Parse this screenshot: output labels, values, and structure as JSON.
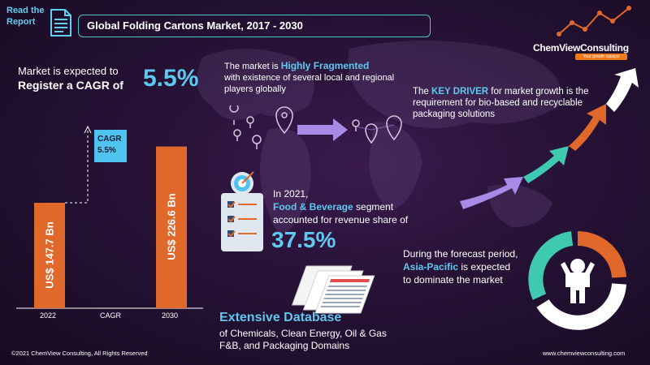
{
  "header": {
    "read_report_line1": "Read the",
    "read_report_line2": "Report",
    "title": "Global Folding Cartons Market, 2017 - 2030"
  },
  "logo": {
    "name": "ChemViewConsulting",
    "tagline": "Your growth catalyst"
  },
  "cagr": {
    "line1": "Market is expected to",
    "line2": "Register a CAGR of",
    "value": "5.5%"
  },
  "chart_data": {
    "type": "bar",
    "title": "",
    "categories": [
      "2022",
      "CAGR",
      "2030"
    ],
    "series": [
      {
        "values": [
          147.7,
          null,
          226.6
        ]
      }
    ],
    "bar_labels": [
      "US$ 147.7 Bn",
      "",
      "US$ 226.6 Bn"
    ],
    "badge": {
      "label": "CAGR",
      "value": "5.5%"
    },
    "xlabel": "",
    "ylabel": "",
    "ylim": [
      0,
      250
    ],
    "grid": false,
    "colors": {
      "bar": "#e0682a",
      "badge": "#4fc3f0"
    }
  },
  "fragmented": {
    "pre": "The market is ",
    "highlight": "Highly Fragmented",
    "rest": "with existence of several local and regional players globally"
  },
  "driver": {
    "pre": "The ",
    "highlight": "KEY DRIVER",
    "rest": " for market growth is the requirement for bio-based and recyclable packaging solutions"
  },
  "food_bev": {
    "line1": "In 2021,",
    "highlight": "Food & Beverage",
    "line2_rest": " segment",
    "line3": "accounted for revenue share of",
    "value": "37.5%"
  },
  "database": {
    "title": "Extensive Database",
    "line1": "of Chemicals, Clean Energy, Oil & Gas",
    "line2": "F&B, and Packaging Domains"
  },
  "apac": {
    "line1": "During the forecast period,",
    "highlight": "Asia-Pacific",
    "line2_rest": " is expected",
    "line3": "to dominate the market"
  },
  "footer": {
    "copyright": "©2021 ChemView Consulting,  All Rights Reserved",
    "url": "www.chemviewconsulting.com"
  },
  "colors": {
    "accent": "#5fc8f0",
    "orange": "#e0682a",
    "teal": "#3ec9b0",
    "lavender": "#a78be6"
  }
}
